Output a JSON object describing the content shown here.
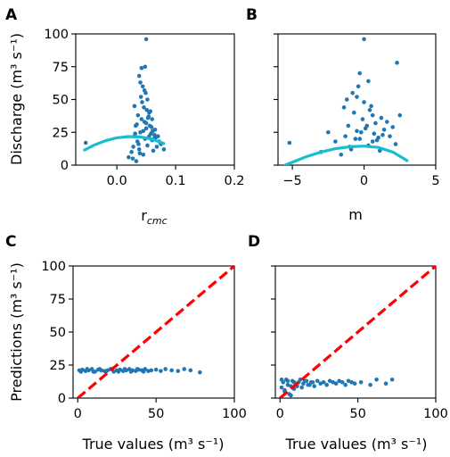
{
  "colors": {
    "points": "#1f77b4",
    "fit_curve": "#17becf",
    "reference_line": "#ff0000"
  },
  "chart_data": [
    {
      "panel": "A",
      "type": "scatter",
      "xlabel_main": "r",
      "xlabel_sub": "cmc",
      "ylabel": "Discharge (m³ s⁻¹)",
      "xlim": [
        -0.07,
        0.2
      ],
      "ylim": [
        0,
        100
      ],
      "xticks": [
        0.0,
        0.1,
        0.2
      ],
      "xtick_labels": [
        "0.0",
        "0.1",
        "0.2"
      ],
      "yticks": [
        0,
        25,
        50,
        75,
        100
      ],
      "ytick_labels": [
        "0",
        "25",
        "50",
        "75",
        "100"
      ],
      "points_x": [
        -0.053,
        0.02,
        0.025,
        0.028,
        0.03,
        0.032,
        0.035,
        0.038,
        0.04,
        0.042,
        0.045,
        0.048,
        0.05,
        0.052,
        0.055,
        0.058,
        0.06,
        0.062,
        0.065,
        0.07,
        0.075,
        0.08,
        0.03,
        0.036,
        0.041,
        0.044,
        0.047,
        0.051,
        0.056,
        0.061,
        0.066,
        0.072,
        0.027,
        0.033,
        0.039,
        0.043,
        0.049,
        0.053,
        0.059,
        0.064,
        0.034,
        0.046,
        0.054,
        0.057,
        0.063,
        0.068,
        0.031,
        0.037,
        0.045,
        0.05,
        0.055,
        0.04,
        0.048,
        0.052,
        0.06,
        0.038,
        0.042,
        0.05,
        0.047
      ],
      "points_y": [
        17,
        6,
        10,
        14,
        22,
        30,
        18,
        12,
        25,
        35,
        8,
        20,
        28,
        15,
        40,
        24,
        19,
        11,
        27,
        22,
        16,
        12,
        45,
        38,
        52,
        60,
        33,
        42,
        30,
        26,
        21,
        18,
        5,
        3,
        9,
        48,
        55,
        36,
        29,
        23,
        31,
        44,
        37,
        41,
        20,
        14,
        24,
        16,
        26,
        32,
        22,
        63,
        75,
        50,
        35,
        68,
        74,
        96,
        57
      ],
      "fit_x": [
        -0.055,
        -0.04,
        -0.02,
        0.0,
        0.02,
        0.04,
        0.06,
        0.08
      ],
      "fit_y": [
        11.5,
        15.0,
        18.5,
        20.8,
        21.8,
        21.5,
        19.8,
        16.5
      ]
    },
    {
      "panel": "B",
      "type": "scatter",
      "xlabel": "m",
      "ylabel": "",
      "xlim": [
        -6,
        5
      ],
      "ylim": [
        0,
        100
      ],
      "xticks": [
        -5,
        0,
        5
      ],
      "xtick_labels": [
        "−5",
        "0",
        "5"
      ],
      "yticks": [
        0,
        25,
        50,
        75,
        100
      ],
      "ytick_labels": [],
      "points_x": [
        -5.2,
        -3.0,
        -2.5,
        -2.0,
        -1.6,
        -1.3,
        -1.1,
        -0.9,
        -0.7,
        -0.5,
        -0.3,
        -0.1,
        0.1,
        0.3,
        0.5,
        0.7,
        0.9,
        1.1,
        1.4,
        1.8,
        2.2,
        2.5,
        -1.2,
        -0.8,
        -0.4,
        0.0,
        0.4,
        0.8,
        1.2,
        -1.0,
        -0.6,
        -0.2,
        0.2,
        0.6,
        1.0,
        1.6,
        2.0,
        -1.4,
        -0.3,
        0.3,
        0.0,
        -0.5,
        0.6,
        1.3,
        2.3
      ],
      "points_y": [
        17,
        10,
        25,
        18,
        8,
        22,
        30,
        12,
        40,
        26,
        20,
        35,
        28,
        15,
        45,
        24,
        19,
        11,
        27,
        22,
        16,
        38,
        50,
        55,
        60,
        96,
        42,
        32,
        36,
        14,
        20,
        25,
        30,
        18,
        21,
        33,
        29,
        44,
        70,
        64,
        48,
        52,
        38,
        23,
        78
      ],
      "fit_x": [
        -5.5,
        -4,
        -3,
        -2,
        -1,
        0,
        1,
        2,
        3
      ],
      "fit_y": [
        0.0,
        6.5,
        10.0,
        12.5,
        14.0,
        14.5,
        13.5,
        10.0,
        3.5
      ]
    },
    {
      "panel": "C",
      "type": "scatter",
      "xlabel": "True values (m³ s⁻¹)",
      "ylabel": "Predictions (m³ s⁻¹)",
      "xlim": [
        -3,
        100
      ],
      "ylim": [
        0,
        100
      ],
      "xticks": [
        0,
        50,
        100
      ],
      "xtick_labels": [
        "0",
        "50",
        "100"
      ],
      "yticks": [
        0,
        25,
        50,
        75,
        100
      ],
      "ytick_labels": [
        "0",
        "25",
        "50",
        "75",
        "100"
      ],
      "points_x": [
        1,
        3,
        5,
        7,
        9,
        11,
        13,
        15,
        17,
        19,
        21,
        23,
        25,
        27,
        29,
        31,
        33,
        35,
        37,
        39,
        41,
        43,
        45,
        47,
        50,
        53,
        56,
        60,
        64,
        68,
        72,
        78,
        2,
        6,
        10,
        14,
        18,
        22,
        26,
        30,
        34,
        38,
        42
      ],
      "points_y": [
        21,
        21.5,
        20.5,
        21,
        22,
        20,
        21.5,
        21,
        20.5,
        21,
        22,
        20,
        21,
        21.5,
        20.5,
        21,
        22,
        21,
        20.5,
        21.5,
        21,
        22,
        20.5,
        21,
        21.5,
        20.5,
        22,
        21,
        20.5,
        22,
        21,
        19.5,
        20,
        22,
        20,
        22,
        20,
        22,
        20,
        22,
        20,
        22,
        20
      ],
      "reference_line": {
        "x": [
          0,
          100
        ],
        "y": [
          0,
          100
        ]
      }
    },
    {
      "panel": "D",
      "type": "scatter",
      "xlabel": "True values (m³ s⁻¹)",
      "ylabel": "",
      "xlim": [
        -3,
        100
      ],
      "ylim": [
        0,
        100
      ],
      "xticks": [
        0,
        50,
        100
      ],
      "xtick_labels": [
        "0",
        "50",
        "100"
      ],
      "yticks": [
        0,
        25,
        50,
        75,
        100
      ],
      "ytick_labels": [],
      "points_x": [
        1,
        2,
        3,
        4,
        5,
        6,
        7,
        8,
        9,
        10,
        12,
        14,
        16,
        18,
        20,
        22,
        24,
        26,
        28,
        30,
        32,
        34,
        36,
        38,
        40,
        42,
        44,
        46,
        48,
        52,
        58,
        62,
        68,
        72,
        1,
        3,
        5,
        7,
        9,
        11,
        13,
        15,
        17,
        19,
        21
      ],
      "points_y": [
        8,
        12,
        5,
        14,
        10,
        3,
        9,
        13,
        7,
        11,
        12,
        8,
        13,
        10,
        12,
        9,
        13,
        11,
        12,
        10,
        13,
        12,
        11,
        13,
        12,
        10,
        13,
        12,
        11,
        12,
        10,
        14,
        11,
        14,
        14,
        6,
        13,
        2,
        12,
        9,
        14,
        11,
        13,
        10,
        12
      ],
      "reference_line": {
        "x": [
          0,
          100
        ],
        "y": [
          0,
          100
        ]
      }
    }
  ]
}
